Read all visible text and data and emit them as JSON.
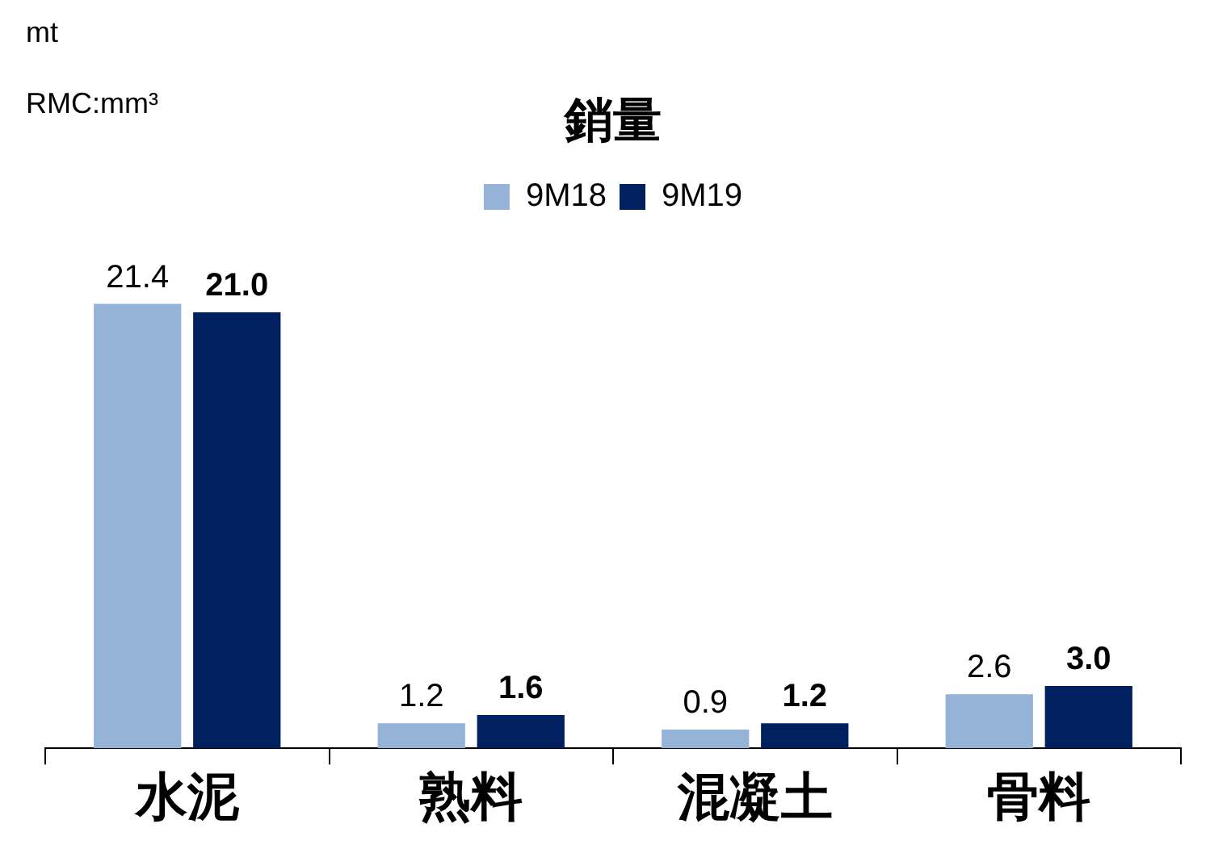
{
  "chart_data": {
    "type": "bar",
    "title": "銷量",
    "annotations": [
      "mt",
      "RMC:mm³"
    ],
    "categories": [
      "水泥",
      "熟料",
      "混凝土",
      "骨料"
    ],
    "series": [
      {
        "name": "9M18",
        "color": "#95b3d7",
        "values": [
          21.4,
          1.2,
          0.9,
          2.6
        ],
        "value_labels": [
          "21.4",
          "1.2",
          "0.9",
          "2.6"
        ]
      },
      {
        "name": "9M19",
        "color": "#002060",
        "values": [
          21.0,
          1.6,
          1.2,
          3.0
        ],
        "value_labels": [
          "21.0",
          "1.6",
          "1.2",
          "3.0"
        ]
      }
    ],
    "legend": "top",
    "grid": false
  }
}
